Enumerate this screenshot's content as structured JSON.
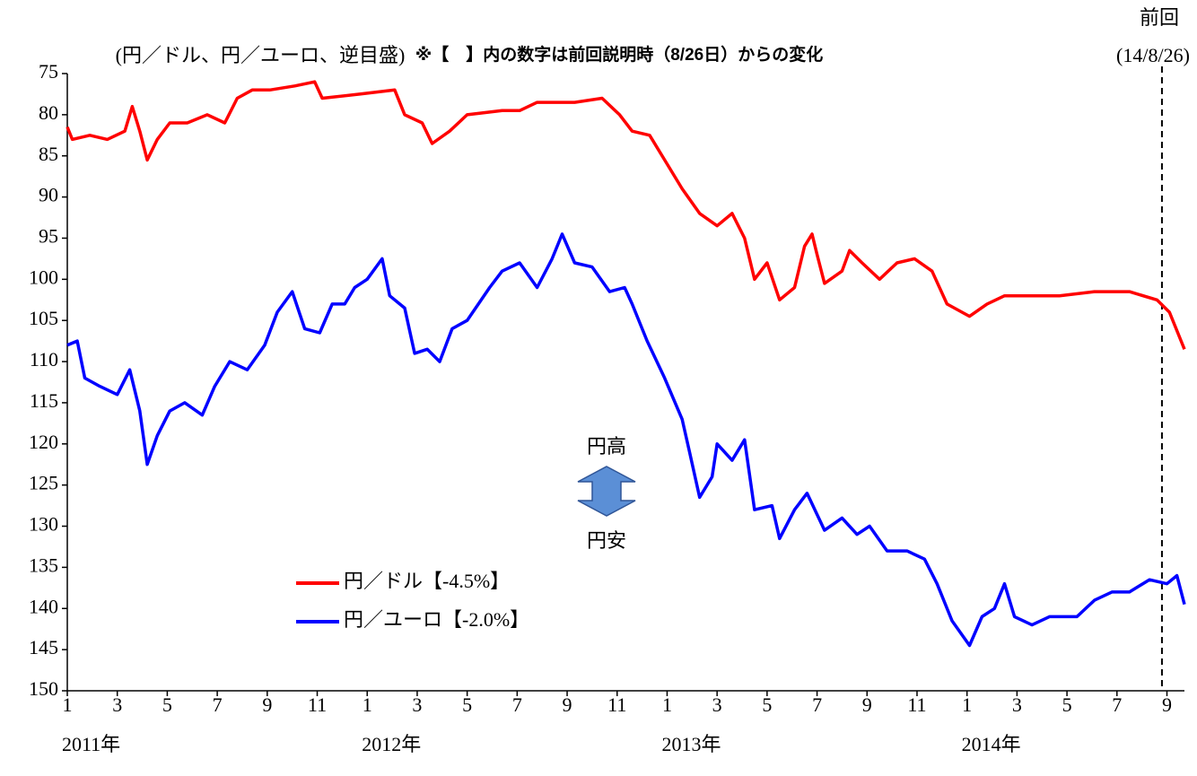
{
  "chart_data": {
    "type": "line",
    "y_axis_label": "(円／ドル、円／ユーロ、逆目盛)",
    "note": "※【　】内の数字は前回説明時（8/26日）からの変化",
    "reference_line": {
      "x": 43.8,
      "title": "前回",
      "label": "(14/8/26)"
    },
    "annotations": {
      "up": "円高",
      "down": "円安"
    },
    "ylim": [
      75,
      150
    ],
    "y_inverted": true,
    "yticks": [
      75,
      80,
      85,
      90,
      95,
      100,
      105,
      110,
      115,
      120,
      125,
      130,
      135,
      140,
      145,
      150
    ],
    "xlim": [
      0,
      44.7
    ],
    "xticks": [
      {
        "value": 0,
        "label": "1"
      },
      {
        "value": 2,
        "label": "3"
      },
      {
        "value": 4,
        "label": "5"
      },
      {
        "value": 6,
        "label": "7"
      },
      {
        "value": 8,
        "label": "9"
      },
      {
        "value": 10,
        "label": "11"
      },
      {
        "value": 12,
        "label": "1"
      },
      {
        "value": 14,
        "label": "3"
      },
      {
        "value": 16,
        "label": "5"
      },
      {
        "value": 18,
        "label": "7"
      },
      {
        "value": 20,
        "label": "9"
      },
      {
        "value": 22,
        "label": "11"
      },
      {
        "value": 24,
        "label": "1"
      },
      {
        "value": 26,
        "label": "3"
      },
      {
        "value": 28,
        "label": "5"
      },
      {
        "value": 30,
        "label": "7"
      },
      {
        "value": 32,
        "label": "9"
      },
      {
        "value": 34,
        "label": "11"
      },
      {
        "value": 36,
        "label": "1"
      },
      {
        "value": 38,
        "label": "3"
      },
      {
        "value": 40,
        "label": "5"
      },
      {
        "value": 42,
        "label": "7"
      },
      {
        "value": 44,
        "label": "9"
      }
    ],
    "year_labels": [
      {
        "value": 0,
        "label": "2011年"
      },
      {
        "value": 12,
        "label": "2012年"
      },
      {
        "value": 24,
        "label": "2013年"
      },
      {
        "value": 36,
        "label": "2014年"
      }
    ],
    "series": [
      {
        "name": "円／ドル【-4.5%】",
        "color": "#ff0000",
        "x": [
          0,
          0.2,
          0.9,
          1.6,
          2.3,
          2.6,
          2.9,
          3.2,
          3.6,
          4.1,
          4.8,
          5.6,
          6.3,
          6.8,
          7.4,
          8.1,
          9.1,
          9.9,
          10.2,
          11.7,
          13.1,
          13.5,
          14.2,
          14.6,
          15.3,
          16.0,
          17.4,
          18.1,
          18.8,
          20.3,
          21.4,
          22.1,
          22.6,
          23.3,
          24.0,
          24.6,
          25.3,
          26.0,
          26.6,
          27.1,
          27.5,
          28.0,
          28.5,
          29.1,
          29.5,
          29.8,
          30.0,
          30.3,
          31.0,
          31.3,
          31.8,
          32.5,
          33.2,
          33.9,
          34.6,
          35.2,
          36.1,
          36.8,
          37.5,
          38.6,
          39.7,
          41.1,
          42.5,
          43.6,
          44.1,
          44.7
        ],
        "values": [
          81.5,
          83,
          82.5,
          83,
          82,
          79,
          82,
          85.5,
          83,
          81,
          81,
          80,
          81,
          78,
          77,
          77,
          76.5,
          76,
          78,
          77.5,
          77,
          80,
          81,
          83.5,
          82,
          80,
          79.5,
          79.5,
          78.5,
          78.5,
          78,
          80,
          82,
          82.5,
          86,
          89,
          92,
          93.5,
          92,
          95,
          100,
          98,
          102.5,
          101,
          96,
          94.5,
          97,
          100.5,
          99,
          96.5,
          98,
          100,
          98,
          97.5,
          99,
          103,
          104.5,
          103,
          102,
          102,
          102,
          101.5,
          101.5,
          102.5,
          104,
          108.5
        ]
      },
      {
        "name": "円／ユーロ【-2.0%】",
        "color": "#0000ff",
        "x": [
          0,
          0.4,
          0.7,
          1.3,
          2.0,
          2.5,
          2.9,
          3.2,
          3.6,
          4.1,
          4.7,
          5.4,
          5.9,
          6.5,
          7.2,
          7.9,
          8.4,
          9.0,
          9.5,
          10.1,
          10.6,
          11.1,
          11.5,
          12.0,
          12.6,
          12.9,
          13.5,
          13.9,
          14.4,
          14.9,
          15.4,
          16.0,
          16.9,
          17.4,
          18.1,
          18.8,
          19.4,
          19.8,
          20.3,
          21.0,
          21.7,
          22.3,
          22.6,
          23.2,
          23.9,
          24.6,
          24.9,
          25.3,
          25.8,
          26.0,
          26.6,
          27.1,
          27.5,
          28.2,
          28.5,
          29.1,
          29.6,
          30.3,
          31.0,
          31.6,
          32.1,
          32.8,
          33.6,
          34.3,
          34.8,
          35.4,
          36.1,
          36.6,
          37.1,
          37.5,
          37.9,
          38.6,
          39.3,
          40.4,
          41.1,
          41.8,
          42.5,
          43.3,
          44.0,
          44.4,
          44.7
        ],
        "values": [
          108,
          107.5,
          112,
          113,
          114,
          111,
          116,
          122.5,
          119,
          116,
          115,
          116.5,
          113,
          110,
          111,
          108,
          104,
          101.5,
          106,
          106.5,
          103,
          103,
          101,
          100,
          97.5,
          102,
          103.5,
          109,
          108.5,
          110,
          106,
          105,
          101,
          99,
          98,
          101,
          97.5,
          94.5,
          98,
          98.5,
          101.5,
          101,
          103,
          107.5,
          112,
          117,
          121,
          126.5,
          124,
          120,
          122,
          119.5,
          128,
          127.5,
          131.5,
          128,
          126,
          130.5,
          129,
          131,
          130,
          133,
          133,
          134,
          137,
          141.5,
          144.5,
          141,
          140,
          137,
          141,
          142,
          141,
          141,
          139,
          138,
          138,
          136.5,
          137,
          136,
          139.5
        ]
      }
    ]
  }
}
